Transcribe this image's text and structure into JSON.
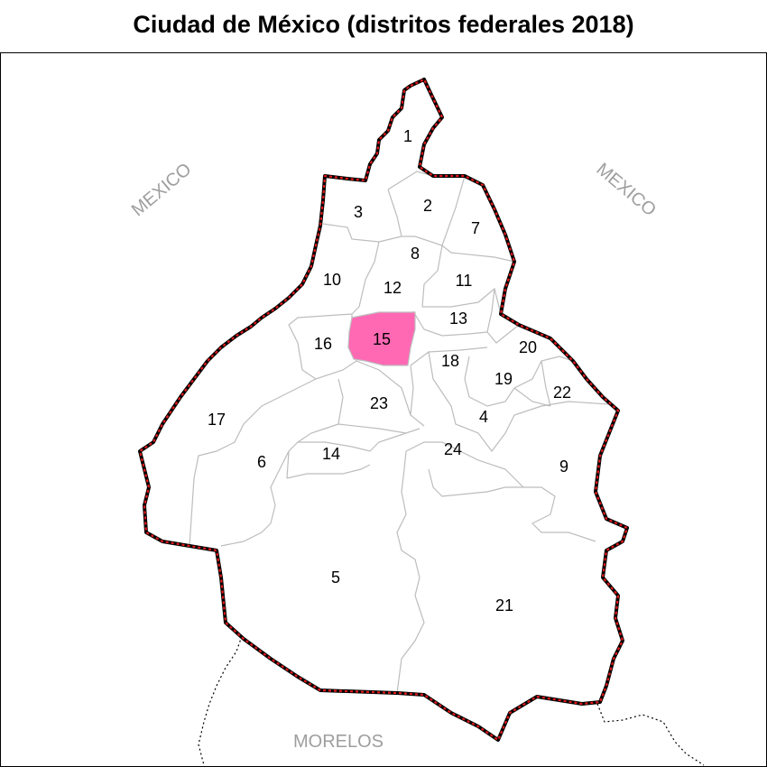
{
  "title": "Ciudad de México (distritos federales 2018)",
  "colors": {
    "highlight": "#ff69b4",
    "boundary_red": "#e41a1c",
    "boundary_black": "#000000",
    "district_line": "#bdbdbd",
    "state_label": "#9e9e9e"
  },
  "highlighted_district": "15",
  "neighbors": {
    "west": "MEXICO",
    "east": "MEXICO",
    "south": "MORELOS"
  },
  "districts": [
    {
      "id": "1",
      "label": "1"
    },
    {
      "id": "2",
      "label": "2"
    },
    {
      "id": "3",
      "label": "3"
    },
    {
      "id": "4",
      "label": "4"
    },
    {
      "id": "5",
      "label": "5"
    },
    {
      "id": "6",
      "label": "6"
    },
    {
      "id": "7",
      "label": "7"
    },
    {
      "id": "8",
      "label": "8"
    },
    {
      "id": "9",
      "label": "9"
    },
    {
      "id": "10",
      "label": "10"
    },
    {
      "id": "11",
      "label": "11"
    },
    {
      "id": "12",
      "label": "12"
    },
    {
      "id": "13",
      "label": "13"
    },
    {
      "id": "14",
      "label": "14"
    },
    {
      "id": "15",
      "label": "15"
    },
    {
      "id": "16",
      "label": "16"
    },
    {
      "id": "17",
      "label": "17"
    },
    {
      "id": "18",
      "label": "18"
    },
    {
      "id": "19",
      "label": "19"
    },
    {
      "id": "20",
      "label": "20"
    },
    {
      "id": "21",
      "label": "21"
    },
    {
      "id": "22",
      "label": "22"
    },
    {
      "id": "23",
      "label": "23"
    },
    {
      "id": "24",
      "label": "24"
    }
  ]
}
